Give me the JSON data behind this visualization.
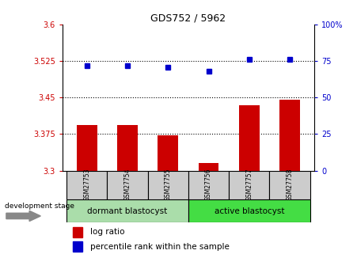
{
  "title": "GDS752 / 5962",
  "samples": [
    "GSM27753",
    "GSM27754",
    "GSM27755",
    "GSM27756",
    "GSM27757",
    "GSM27758"
  ],
  "log_ratio": [
    3.393,
    3.393,
    3.372,
    3.315,
    3.435,
    3.445
  ],
  "percentile_rank": [
    72,
    72,
    71,
    68,
    76,
    76
  ],
  "ylim_left": [
    3.3,
    3.6
  ],
  "ylim_right": [
    0,
    100
  ],
  "yticks_left": [
    3.3,
    3.375,
    3.45,
    3.525,
    3.6
  ],
  "ytick_labels_left": [
    "3.3",
    "3.375",
    "3.45",
    "3.525",
    "3.6"
  ],
  "yticks_right": [
    0,
    25,
    50,
    75,
    100
  ],
  "ytick_labels_right": [
    "0",
    "25",
    "50",
    "75",
    "100%"
  ],
  "hlines": [
    3.375,
    3.45,
    3.525
  ],
  "bar_color": "#cc0000",
  "dot_color": "#0000cc",
  "bar_bottom": 3.3,
  "group1_label": "dormant blastocyst",
  "group2_label": "active blastocyst",
  "group1_samples": [
    0,
    1,
    2
  ],
  "group2_samples": [
    3,
    4,
    5
  ],
  "sample_box_color": "#cccccc",
  "group1_color": "#aaddaa",
  "group2_color": "#44dd44",
  "dev_stage_label": "development stage",
  "legend_bar_label": "log ratio",
  "legend_dot_label": "percentile rank within the sample",
  "bar_width": 0.5,
  "bg_color": "#ffffff"
}
